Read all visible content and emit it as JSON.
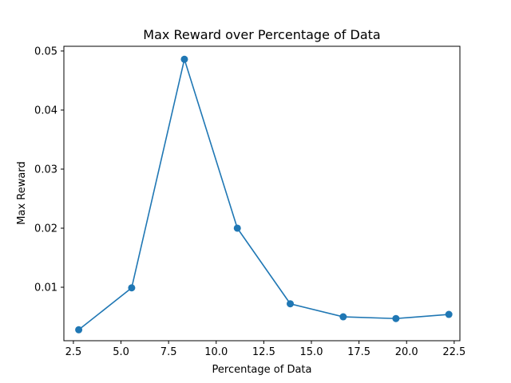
{
  "chart_data": {
    "type": "line",
    "title": "Max Reward over Percentage of Data",
    "xlabel": "Percentage of Data",
    "ylabel": "Max Reward",
    "xlim": [
      2.0,
      22.8
    ],
    "ylim": [
      0.00095,
      0.0508
    ],
    "xticks": [
      2.5,
      5.0,
      7.5,
      10.0,
      12.5,
      15.0,
      17.5,
      20.0,
      22.5
    ],
    "xtick_labels": [
      "2.5",
      "5.0",
      "7.5",
      "10.0",
      "12.5",
      "15.0",
      "17.5",
      "20.0",
      "22.5"
    ],
    "yticks": [
      0.01,
      0.02,
      0.03,
      0.04,
      0.05
    ],
    "ytick_labels": [
      "0.01",
      "0.02",
      "0.03",
      "0.04",
      "0.05"
    ],
    "grid": false,
    "series": [
      {
        "color": "#1f77b4",
        "marker": "circle",
        "x": [
          2.78,
          5.56,
          8.33,
          11.11,
          13.89,
          16.67,
          19.44,
          22.22
        ],
        "y": [
          0.0028,
          0.0099,
          0.0486,
          0.02,
          0.0072,
          0.005,
          0.0047,
          0.0054
        ]
      }
    ]
  }
}
